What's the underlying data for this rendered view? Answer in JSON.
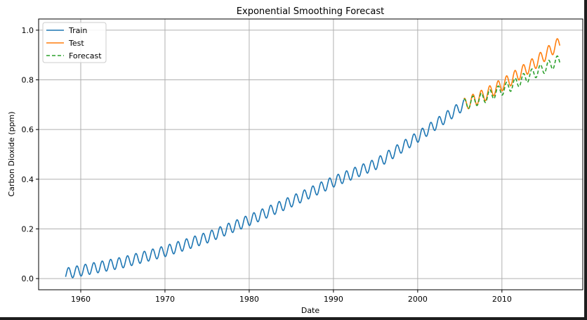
{
  "chart_data": {
    "type": "line",
    "title": "Exponential Smoothing Forecast",
    "xlabel": "Date",
    "ylabel": "Carbon Dioxide (ppm)",
    "xlim": [
      1955.0,
      2019.6
    ],
    "ylim": [
      -0.045,
      1.045
    ],
    "xticks": [
      1960,
      1970,
      1980,
      1990,
      2000,
      2010
    ],
    "xtick_labels": [
      "1960",
      "1970",
      "1980",
      "1990",
      "2000",
      "2010"
    ],
    "yticks": [
      0.0,
      0.2,
      0.4,
      0.6,
      0.8,
      1.0
    ],
    "ytick_labels": [
      "0.0",
      "0.2",
      "0.4",
      "0.6",
      "0.8",
      "1.0"
    ],
    "grid": true,
    "legend": "top-left",
    "series": [
      {
        "name": "Train",
        "color": "#1f77b4",
        "style": "solid",
        "start": 1958.2,
        "end": 2005.5,
        "anchor_x": [
          1958.2,
          1965,
          1970,
          1975,
          1980,
          1985,
          1990,
          1995,
          2000,
          2005.5
        ],
        "trend": [
          0.02,
          0.065,
          0.11,
          0.165,
          0.235,
          0.31,
          0.39,
          0.46,
          0.57,
          0.7
        ],
        "seasonal_amplitude": 0.022
      },
      {
        "name": "Test",
        "color": "#ff7f0e",
        "style": "solid",
        "start": 2005.5,
        "end": 2016.9,
        "anchor_x": [
          2005.5,
          2008,
          2011,
          2014,
          2016.9
        ],
        "trend": [
          0.7,
          0.74,
          0.8,
          0.87,
          0.95
        ],
        "seasonal_amplitude": 0.025
      },
      {
        "name": "Forecast",
        "color": "#2ca02c",
        "style": "dashed",
        "start": 2005.5,
        "end": 2016.9,
        "anchor_x": [
          2005.5,
          2008,
          2011,
          2014,
          2016.9
        ],
        "trend": [
          0.7,
          0.73,
          0.775,
          0.83,
          0.88
        ],
        "seasonal_amplitude": 0.022
      }
    ]
  }
}
